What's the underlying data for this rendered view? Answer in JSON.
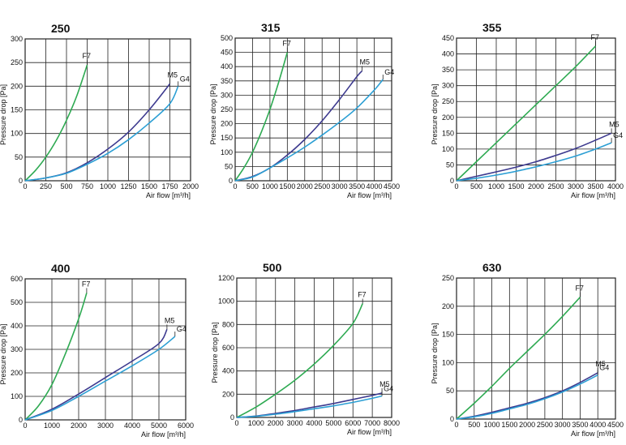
{
  "colors": {
    "F7": "#2eaa52",
    "M5": "#3d3a8f",
    "G4": "#2c9fd4",
    "grid": "#222222"
  },
  "chart_data": [
    {
      "type": "line",
      "title": "250",
      "xlabel": "Air flow [m³/h]",
      "ylabel": "Pressure drop [Pa]",
      "xlim": [
        0,
        2000
      ],
      "ylim": [
        0,
        300
      ],
      "xticks": [
        0,
        250,
        500,
        750,
        1000,
        1250,
        1500,
        1750,
        2000
      ],
      "yticks": [
        0,
        50,
        100,
        150,
        200,
        250,
        300
      ],
      "series": [
        {
          "name": "F7",
          "x": [
            0,
            125,
            250,
            375,
            500,
            625,
            750
          ],
          "y": [
            0,
            22,
            50,
            85,
            128,
            180,
            245
          ]
        },
        {
          "name": "M5",
          "x": [
            0,
            250,
            500,
            750,
            1000,
            1250,
            1500,
            1750
          ],
          "y": [
            0,
            6,
            17,
            38,
            67,
            103,
            150,
            205
          ]
        },
        {
          "name": "G4",
          "x": [
            0,
            250,
            500,
            750,
            1000,
            1250,
            1500,
            1750,
            1850
          ],
          "y": [
            0,
            6,
            16,
            35,
            58,
            87,
            122,
            163,
            200
          ]
        }
      ]
    },
    {
      "type": "line",
      "title": "315",
      "xlabel": "Air flow [m³/h]",
      "ylabel": "Pressure drop [Pa]",
      "xlim": [
        0,
        4500
      ],
      "ylim": [
        0,
        500
      ],
      "xticks": [
        0,
        500,
        1000,
        1500,
        2000,
        2500,
        3000,
        3500,
        4000,
        4500
      ],
      "yticks": [
        0,
        50,
        100,
        150,
        200,
        250,
        300,
        350,
        400,
        450,
        500
      ],
      "series": [
        {
          "name": "F7",
          "x": [
            0,
            250,
            500,
            750,
            1000,
            1250,
            1500
          ],
          "y": [
            0,
            45,
            100,
            170,
            250,
            345,
            450
          ]
        },
        {
          "name": "M5",
          "x": [
            0,
            500,
            1000,
            1500,
            2000,
            2500,
            3000,
            3500,
            3650
          ],
          "y": [
            0,
            15,
            45,
            90,
            145,
            210,
            285,
            365,
            385
          ]
        },
        {
          "name": "G4",
          "x": [
            0,
            500,
            1000,
            1500,
            2000,
            2500,
            3000,
            3500,
            4000,
            4250
          ],
          "y": [
            0,
            13,
            45,
            80,
            118,
            160,
            205,
            255,
            318,
            355
          ]
        }
      ]
    },
    {
      "type": "line",
      "title": "355",
      "xlabel": "Air flow [m³/h]",
      "ylabel": "Pressure drop [Pa]",
      "xlim": [
        0,
        4000
      ],
      "ylim": [
        0,
        450
      ],
      "xticks": [
        0,
        500,
        1000,
        1500,
        2000,
        2500,
        3000,
        3500,
        4000
      ],
      "yticks": [
        0,
        50,
        100,
        150,
        200,
        250,
        300,
        350,
        400,
        450
      ],
      "series": [
        {
          "name": "F7",
          "x": [
            0,
            500,
            1000,
            1500,
            2000,
            2500,
            3000,
            3500
          ],
          "y": [
            0,
            60,
            120,
            180,
            240,
            300,
            360,
            425
          ]
        },
        {
          "name": "M5",
          "x": [
            0,
            500,
            1000,
            1500,
            2000,
            2500,
            3000,
            3500,
            3900
          ],
          "y": [
            0,
            14,
            28,
            43,
            60,
            80,
            102,
            128,
            150
          ]
        },
        {
          "name": "G4",
          "x": [
            0,
            500,
            1000,
            1500,
            2000,
            2500,
            3000,
            3500,
            3900
          ],
          "y": [
            0,
            8,
            18,
            30,
            44,
            60,
            78,
            100,
            120
          ]
        }
      ]
    },
    {
      "type": "line",
      "title": "400",
      "xlabel": "Air flow [m³/h]",
      "ylabel": "Pressure drop [Pa]",
      "xlim": [
        0,
        6000
      ],
      "ylim": [
        0,
        600
      ],
      "xticks": [
        0,
        1000,
        2000,
        3000,
        4000,
        5000,
        6000
      ],
      "yticks": [
        0,
        100,
        200,
        300,
        400,
        500,
        600
      ],
      "series": [
        {
          "name": "F7",
          "x": [
            0,
            500,
            1000,
            1500,
            2000,
            2300
          ],
          "y": [
            0,
            60,
            150,
            280,
            430,
            540
          ]
        },
        {
          "name": "M5",
          "x": [
            0,
            1000,
            2000,
            3000,
            4000,
            5000,
            5300
          ],
          "y": [
            0,
            45,
            110,
            180,
            250,
            325,
            385
          ]
        },
        {
          "name": "G4",
          "x": [
            0,
            1000,
            2000,
            3000,
            4000,
            5000,
            5600
          ],
          "y": [
            0,
            40,
            100,
            165,
            230,
            300,
            355
          ]
        }
      ]
    },
    {
      "type": "line",
      "title": "500",
      "xlabel": "Air flow [m³/h]",
      "ylabel": "Pressure drop [Pa]",
      "xlim": [
        0,
        8000
      ],
      "ylim": [
        0,
        1200
      ],
      "xticks": [
        0,
        1000,
        2000,
        3000,
        4000,
        5000,
        6000,
        7000,
        8000
      ],
      "yticks": [
        0,
        200,
        400,
        600,
        800,
        1000,
        1200
      ],
      "series": [
        {
          "name": "F7",
          "x": [
            0,
            1000,
            2000,
            3000,
            4000,
            5000,
            6000,
            6500
          ],
          "y": [
            0,
            90,
            200,
            320,
            460,
            620,
            810,
            980
          ]
        },
        {
          "name": "M5",
          "x": [
            0,
            1000,
            2000,
            3000,
            4000,
            5000,
            6000,
            7000,
            7500
          ],
          "y": [
            0,
            12,
            35,
            60,
            90,
            120,
            155,
            190,
            210
          ]
        },
        {
          "name": "G4",
          "x": [
            0,
            1000,
            2000,
            3000,
            4000,
            5000,
            6000,
            7000,
            7500
          ],
          "y": [
            0,
            10,
            28,
            50,
            75,
            100,
            130,
            165,
            185
          ]
        }
      ]
    },
    {
      "type": "line",
      "title": "630",
      "xlabel": "Air flow [m³/h]",
      "ylabel": "Pressure drop [Pa]",
      "xlim": [
        0,
        4500
      ],
      "ylim": [
        0,
        250
      ],
      "xticks": [
        0,
        500,
        1000,
        1500,
        2000,
        2500,
        3000,
        3500,
        4000,
        4500
      ],
      "yticks": [
        0,
        50,
        100,
        150,
        200,
        250
      ],
      "series": [
        {
          "name": "F7",
          "x": [
            0,
            500,
            1000,
            1500,
            2000,
            2500,
            3000,
            3500
          ],
          "y": [
            0,
            28,
            58,
            90,
            120,
            150,
            182,
            216
          ]
        },
        {
          "name": "M5",
          "x": [
            0,
            500,
            1000,
            1500,
            2000,
            2500,
            3000,
            3500,
            4000
          ],
          "y": [
            0,
            5,
            12,
            20,
            28,
            38,
            50,
            65,
            82
          ]
        },
        {
          "name": "G4",
          "x": [
            0,
            500,
            1000,
            1500,
            2000,
            2500,
            3000,
            3500,
            4000
          ],
          "y": [
            0,
            4,
            10,
            18,
            26,
            36,
            48,
            62,
            78
          ]
        }
      ]
    }
  ]
}
